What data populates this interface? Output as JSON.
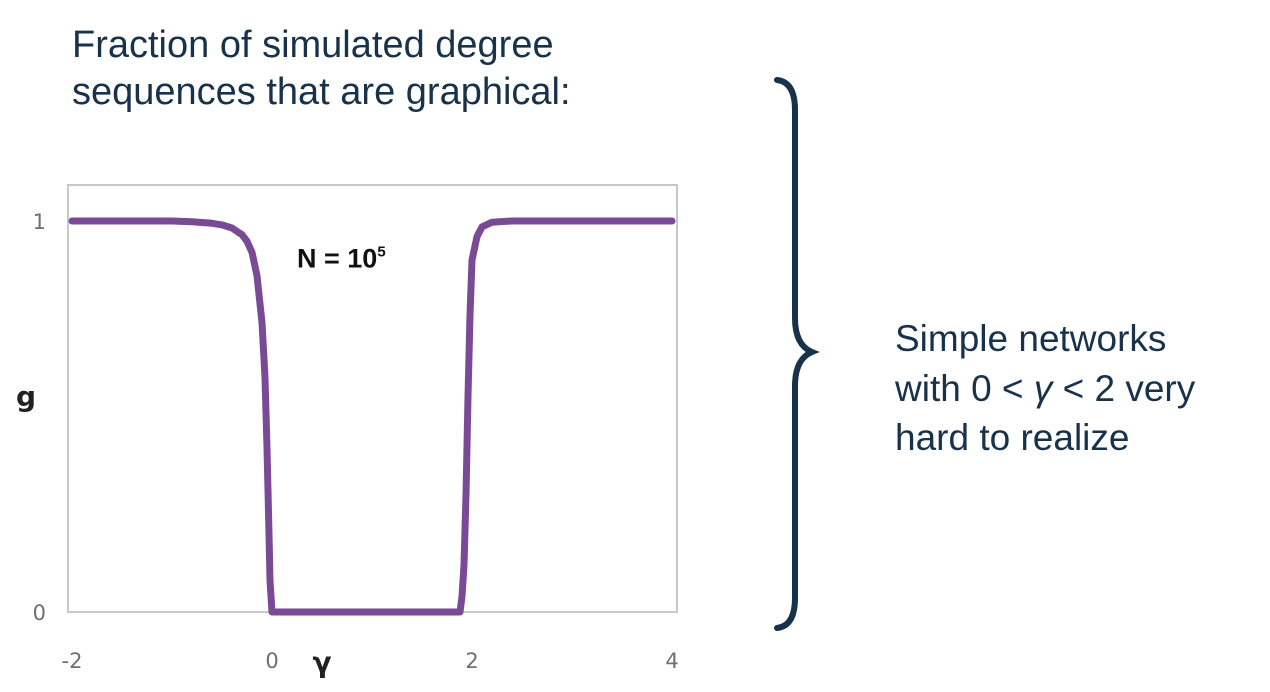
{
  "title_lines": [
    "Fraction of simulated degree",
    "sequences that are graphical:"
  ],
  "note": {
    "line1": "Simple networks",
    "line2_pre": "with 0 < ",
    "line2_var": "γ",
    "line2_post": " < 2 very",
    "line3": "hard to realize"
  },
  "colors": {
    "curve": "#7b4a97",
    "text": "#17324a",
    "brace": "#17324a",
    "frame": "#c8c8c8"
  },
  "chart_data": {
    "type": "line",
    "title": "Fraction of simulated degree sequences that are graphical:",
    "xlabel": "γ",
    "ylabel": "g",
    "xlim": [
      -2,
      4
    ],
    "ylim": [
      0,
      1
    ],
    "x_ticks": [
      "-2",
      "0",
      "2",
      "4"
    ],
    "y_ticks": [
      "0",
      "1"
    ],
    "grid": false,
    "annotation": {
      "text_base": "N = 10",
      "text_exp": "5",
      "x": 0.7,
      "y": 0.92
    },
    "series": [
      {
        "x": [
          -2.0,
          -1.0,
          -0.8,
          -0.6,
          -0.5,
          -0.4,
          -0.3,
          -0.25,
          -0.2,
          -0.15,
          -0.1,
          -0.07,
          -0.05,
          -0.03,
          -0.02,
          0.0,
          0.1,
          1.0,
          1.8,
          1.88,
          1.9,
          1.92,
          1.94,
          1.96,
          1.98,
          2.0,
          2.05,
          2.1,
          2.2,
          2.4,
          3.0,
          4.0
        ],
        "y": [
          1.0,
          1.0,
          0.998,
          0.994,
          0.99,
          0.982,
          0.965,
          0.948,
          0.92,
          0.86,
          0.74,
          0.6,
          0.42,
          0.2,
          0.08,
          0.0,
          0.0,
          0.0,
          0.0,
          0.0,
          0.04,
          0.12,
          0.3,
          0.55,
          0.76,
          0.9,
          0.96,
          0.985,
          0.997,
          1.0,
          1.0,
          1.0
        ]
      }
    ]
  }
}
